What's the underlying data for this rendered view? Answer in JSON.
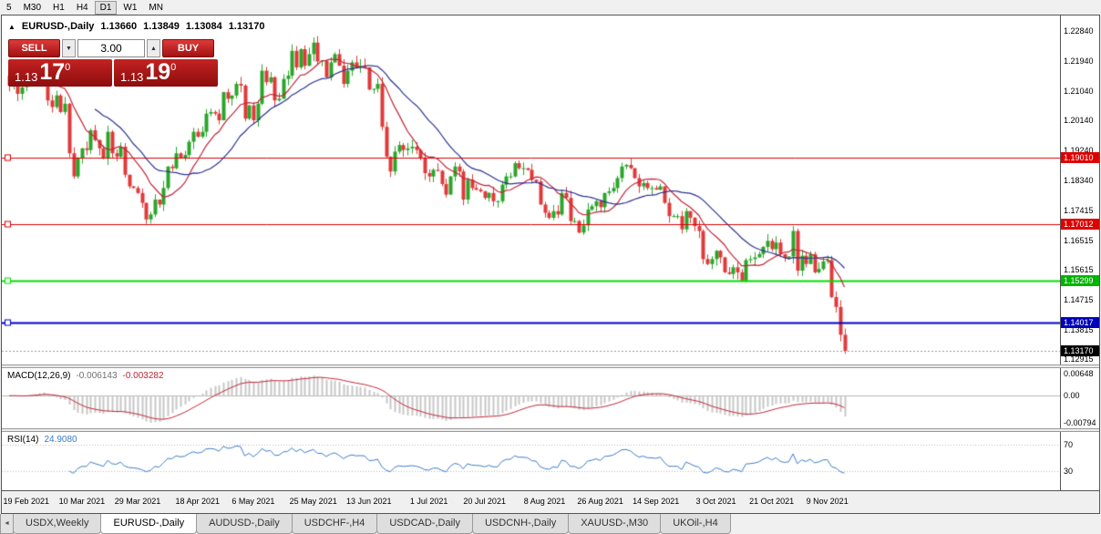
{
  "toolbar": {
    "timeframes": [
      "5",
      "M30",
      "H1",
      "H4",
      "D1",
      "W1",
      "MN"
    ],
    "active": "D1"
  },
  "header": {
    "toggle_icon": "▲",
    "symbol": "EURUSD-,Daily",
    "open": "1.13660",
    "high": "1.13849",
    "low": "1.13084",
    "close": "1.13170"
  },
  "trade": {
    "sell_label": "SELL",
    "buy_label": "BUY",
    "volume": "3.00",
    "vol_down_icon": "▼",
    "vol_up_icon": "▲",
    "sell_price": {
      "small": "1.13",
      "big": "17",
      "sup": "0"
    },
    "buy_price": {
      "small": "1.13",
      "big": "19",
      "sup": "0"
    }
  },
  "price_axis": {
    "labels": [
      "1.22840",
      "1.21940",
      "1.21040",
      "1.20140",
      "1.19240",
      "1.18340",
      "1.17415",
      "1.16515",
      "1.15615",
      "1.14715",
      "1.13815",
      "1.12915"
    ],
    "tags": [
      {
        "text": "1.19010",
        "bg": "#dd0000",
        "fg": "#ffffff"
      },
      {
        "text": "1.17012",
        "bg": "#dd0000",
        "fg": "#ffffff"
      },
      {
        "text": "1.15299",
        "bg": "#00b400",
        "fg": "#ffffff"
      },
      {
        "text": "1.14017",
        "bg": "#0000bb",
        "fg": "#ffffff"
      },
      {
        "text": "1.13170",
        "bg": "#000000",
        "fg": "#ffffff"
      }
    ]
  },
  "macd_panel": {
    "title": "MACD(12,26,9)",
    "value1": "-0.006143",
    "value2": "-0.003282"
  },
  "rsi_panel": {
    "title": "RSI(14)",
    "value": "24.9080"
  },
  "tabs": {
    "scroll_left": "◄",
    "items": [
      {
        "label": "USDX,Weekly",
        "active": false
      },
      {
        "label": "EURUSD-,Daily",
        "active": true
      },
      {
        "label": "AUDUSD-,Daily",
        "active": false
      },
      {
        "label": "USDCHF-,H4",
        "active": false
      },
      {
        "label": "USDCAD-,Daily",
        "active": false
      },
      {
        "label": "USDCNH-,Daily",
        "active": false
      },
      {
        "label": "XAUUSD-,M30",
        "active": false
      },
      {
        "label": "UKOil-,H4",
        "active": false
      }
    ]
  },
  "chart_data": {
    "type": "candlestick",
    "symbol": "EURUSD-",
    "timeframe": "Daily",
    "ylim": [
      1.1276,
      1.2332
    ],
    "up_color": "#2aa52a",
    "down_color": "#e03a3a",
    "x_labels": [
      "19 Feb 2021",
      "10 Mar 2021",
      "29 Mar 2021",
      "18 Apr 2021",
      "6 May 2021",
      "25 May 2021",
      "13 Jun 2021",
      "1 Jul 2021",
      "20 Jul 2021",
      "8 Aug 2021",
      "26 Aug 2021",
      "14 Sep 2021",
      "3 Oct 2021",
      "21 Oct 2021",
      "9 Nov 2021"
    ],
    "x_label_indices": [
      4,
      17,
      30,
      44,
      57,
      71,
      84,
      98,
      111,
      125,
      138,
      151,
      165,
      178,
      191
    ],
    "closes": [
      1.212,
      1.2128,
      1.2095,
      1.2115,
      1.214,
      1.2155,
      1.215,
      1.2165,
      1.2175,
      1.2075,
      1.2055,
      1.209,
      1.204,
      1.2065,
      1.1915,
      1.1845,
      1.19,
      1.193,
      1.1925,
      1.1985,
      1.1955,
      1.193,
      1.19,
      1.198,
      1.1915,
      1.1905,
      1.1935,
      1.185,
      1.1815,
      1.181,
      1.1795,
      1.1765,
      1.1715,
      1.173,
      1.1775,
      1.176,
      1.181,
      1.1875,
      1.187,
      1.1915,
      1.19,
      1.191,
      1.195,
      1.198,
      1.1965,
      1.198,
      1.2035,
      1.204,
      1.2035,
      1.2015,
      1.21,
      1.208,
      1.209,
      1.2125,
      1.212,
      1.202,
      1.206,
      1.2015,
      1.2065,
      1.2165,
      1.213,
      1.2145,
      1.2075,
      1.208,
      1.214,
      1.215,
      1.2225,
      1.2175,
      1.223,
      1.218,
      1.2215,
      1.225,
      1.2193,
      1.2195,
      1.2145,
      1.219,
      1.2215,
      1.218,
      1.2125,
      1.2165,
      1.219,
      1.2175,
      1.218,
      1.2175,
      1.2108,
      1.211,
      1.2125,
      1.1995,
      1.1905,
      1.186,
      1.192,
      1.194,
      1.1925,
      1.193,
      1.1935,
      1.1925,
      1.19,
      1.1855,
      1.1845,
      1.1865,
      1.1862,
      1.1822,
      1.179,
      1.1845,
      1.1875,
      1.186,
      1.1775,
      1.1835,
      1.181,
      1.1805,
      1.18,
      1.178,
      1.1795,
      1.177,
      1.177,
      1.182,
      1.1845,
      1.1845,
      1.1885,
      1.187,
      1.187,
      1.1865,
      1.1835,
      1.183,
      1.176,
      1.1735,
      1.172,
      1.174,
      1.173,
      1.1795,
      1.178,
      1.171,
      1.171,
      1.1675,
      1.1697,
      1.1745,
      1.1755,
      1.177,
      1.1752,
      1.1795,
      1.18,
      1.181,
      1.184,
      1.1875,
      1.188,
      1.187,
      1.184,
      1.1815,
      1.1825,
      1.181,
      1.181,
      1.1805,
      1.1815,
      1.1765,
      1.1725,
      1.1725,
      1.1725,
      1.1685,
      1.174,
      1.172,
      1.1695,
      1.168,
      1.1595,
      1.158,
      1.1595,
      1.162,
      1.16,
      1.1555,
      1.155,
      1.157,
      1.1555,
      1.153,
      1.1592,
      1.1595,
      1.16,
      1.161,
      1.1632,
      1.165,
      1.1625,
      1.1645,
      1.161,
      1.1598,
      1.1603,
      1.168,
      1.156,
      1.1605,
      1.158,
      1.161,
      1.1555,
      1.1565,
      1.1588,
      1.1592,
      1.148,
      1.145,
      1.1366,
      1.1317
    ],
    "last_candle_ohlc": {
      "open": 1.1366,
      "high": 1.13849,
      "low": 1.13084,
      "close": 1.1317
    },
    "moving_averages": [
      {
        "period": 10,
        "color": "#c32438"
      },
      {
        "period": 21,
        "color": "#2a3190"
      }
    ],
    "horizontal_lines": [
      {
        "price": 1.1901,
        "color": "#dd0000",
        "width": 1
      },
      {
        "price": 1.17012,
        "color": "#dd0000",
        "width": 1
      },
      {
        "price": 1.15299,
        "color": "#00dd00",
        "width": 2
      },
      {
        "price": 1.14017,
        "color": "#0000cc",
        "width": 2
      }
    ],
    "bid_line": {
      "price": 1.1317,
      "color": "#999999"
    },
    "macd": {
      "fast": 12,
      "slow": 26,
      "signal": 9,
      "histogram_color": "#c6c6c6",
      "signal_color": "#c32438",
      "axis_labels": [
        "0.00648",
        "0.00",
        "-0.00794"
      ]
    },
    "rsi": {
      "period": 14,
      "color": "#3b7dc4",
      "levels": [
        70,
        30
      ],
      "range": [
        0,
        90
      ]
    }
  }
}
